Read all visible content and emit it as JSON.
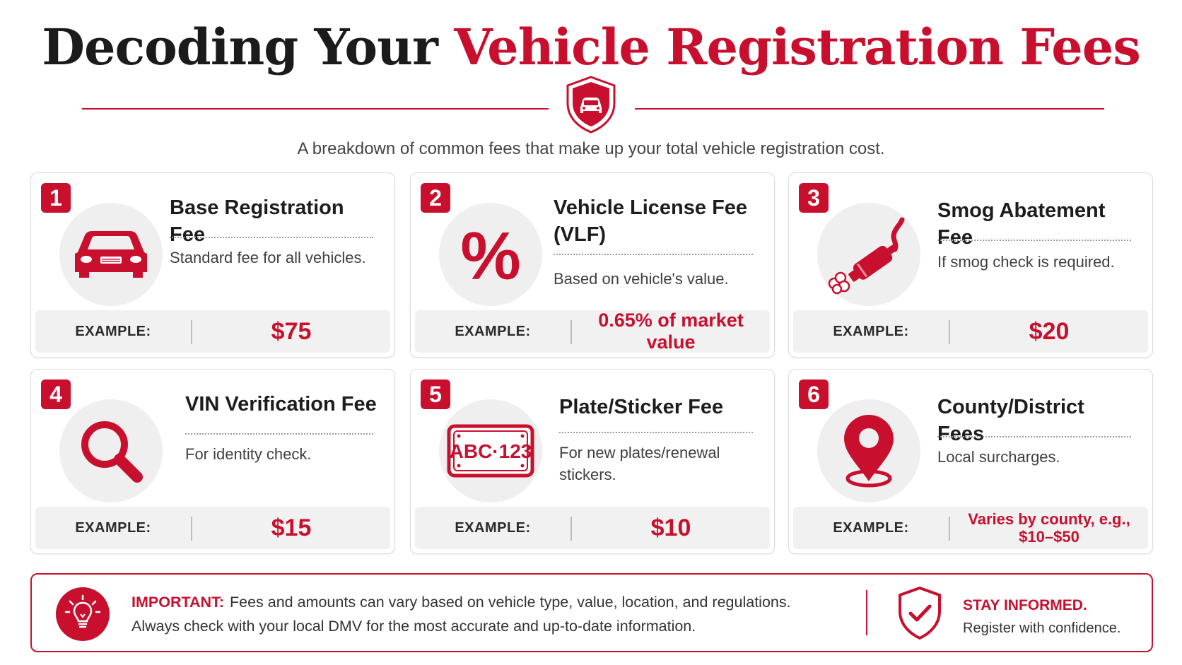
{
  "header": {
    "title_dark": "Decoding Your",
    "title_red": "Vehicle Registration Fees",
    "subtitle": "A breakdown of common fees that make up your total vehicle registration cost."
  },
  "cards": [
    {
      "number": "1",
      "title": "Base Registration Fee",
      "description": "Standard fee for all vehicles.",
      "example_label": "EXAMPLE:",
      "example_value": "$75",
      "icon": "car-icon"
    },
    {
      "number": "2",
      "title": "Vehicle License Fee (VLF)",
      "description": "Based on vehicle's value.",
      "example_label": "EXAMPLE:",
      "example_value": "0.65% of market value",
      "icon": "percent-icon"
    },
    {
      "number": "3",
      "title": "Smog Abatement Fee",
      "description": "If smog check is required.",
      "example_label": "EXAMPLE:",
      "example_value": "$20",
      "icon": "exhaust-pipe-icon"
    },
    {
      "number": "4",
      "title": "VIN Verification Fee",
      "description": "For identity check.",
      "example_label": "EXAMPLE:",
      "example_value": "$15",
      "icon": "magnifier-icon"
    },
    {
      "number": "5",
      "title": "Plate/Sticker Fee",
      "description": "For new plates/renewal stickers.",
      "example_label": "EXAMPLE:",
      "example_value": "$10",
      "icon": "license-plate-icon",
      "plate_text": "ABC·123"
    },
    {
      "number": "6",
      "title": "County/District Fees",
      "description": "Local surcharges.",
      "example_label": "EXAMPLE:",
      "example_value": "Varies by county, e.g., $10–$50",
      "icon": "location-pin-icon"
    }
  ],
  "important": {
    "label": "IMPORTANT:",
    "line1": "Fees and amounts can vary based on vehicle type, value, location, and regulations.",
    "line2": "Always check with your local DMV for the most accurate and up-to-date information.",
    "stay_title": "STAY INFORMED.",
    "stay_sub": "Register with confidence."
  },
  "colors": {
    "accent": "#c8102e",
    "text_dark": "#1b1b1b",
    "panel": "#f1f1f1"
  }
}
